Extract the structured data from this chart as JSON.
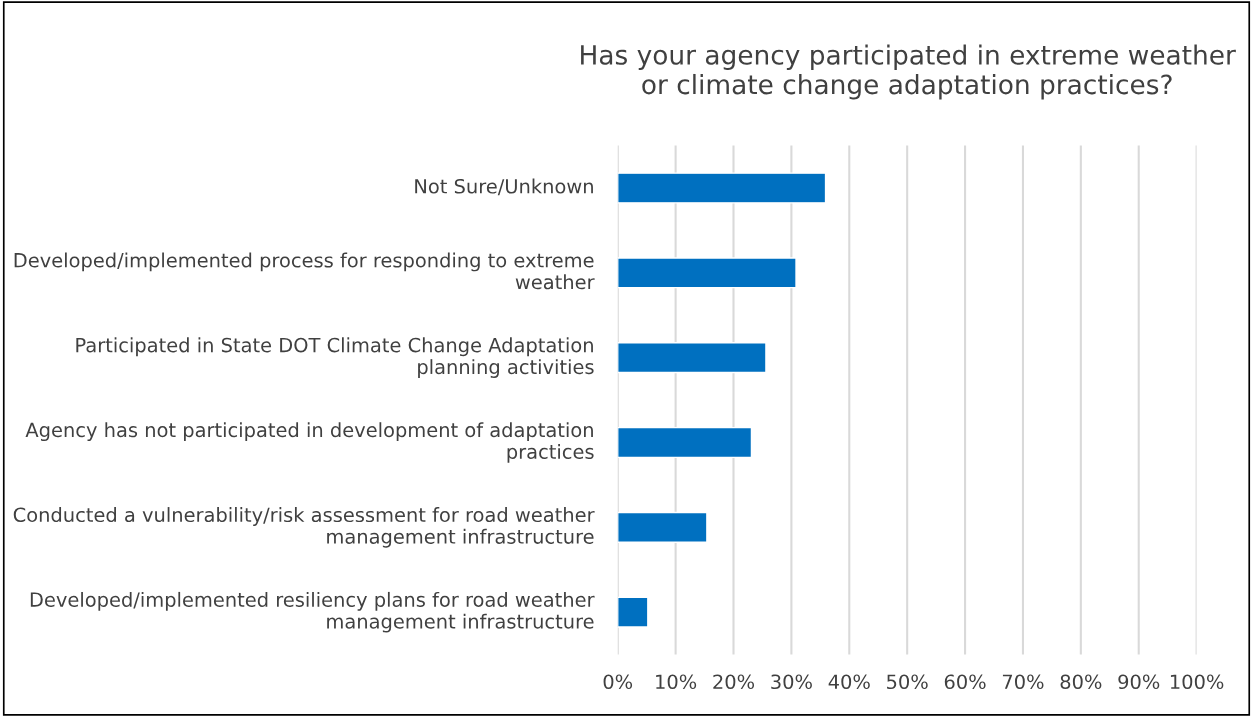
{
  "chart_data": {
    "type": "bar",
    "orientation": "horizontal",
    "title": "Has your agency participated in extreme weather or climate change adaptation practices?",
    "categories": [
      "Not Sure/Unknown",
      "Developed/implemented process for responding to extreme weather",
      "Participated in State DOT Climate Change Adaptation planning activities",
      "Agency has not participated in development of adaptation practices",
      "Conducted a vulnerability/risk assessment for road weather management infrastructure",
      "Developed/implemented resiliency plans for road weather management infrastructure"
    ],
    "values": [
      35.9,
      30.8,
      25.6,
      23.1,
      15.4,
      5.2
    ],
    "color": "#0070c0",
    "xlim": [
      0,
      100
    ],
    "xticks": [
      {
        "value": 0,
        "label": "0%"
      },
      {
        "value": 10,
        "label": "10%"
      },
      {
        "value": 20,
        "label": "20%"
      },
      {
        "value": 30,
        "label": "30%"
      },
      {
        "value": 40,
        "label": "40%"
      },
      {
        "value": 50,
        "label": "50%"
      },
      {
        "value": 60,
        "label": "60%"
      },
      {
        "value": 70,
        "label": "70%"
      },
      {
        "value": 80,
        "label": "80%"
      },
      {
        "value": 90,
        "label": "90%"
      },
      {
        "value": 100,
        "label": "100%"
      }
    ],
    "grid": "x"
  }
}
